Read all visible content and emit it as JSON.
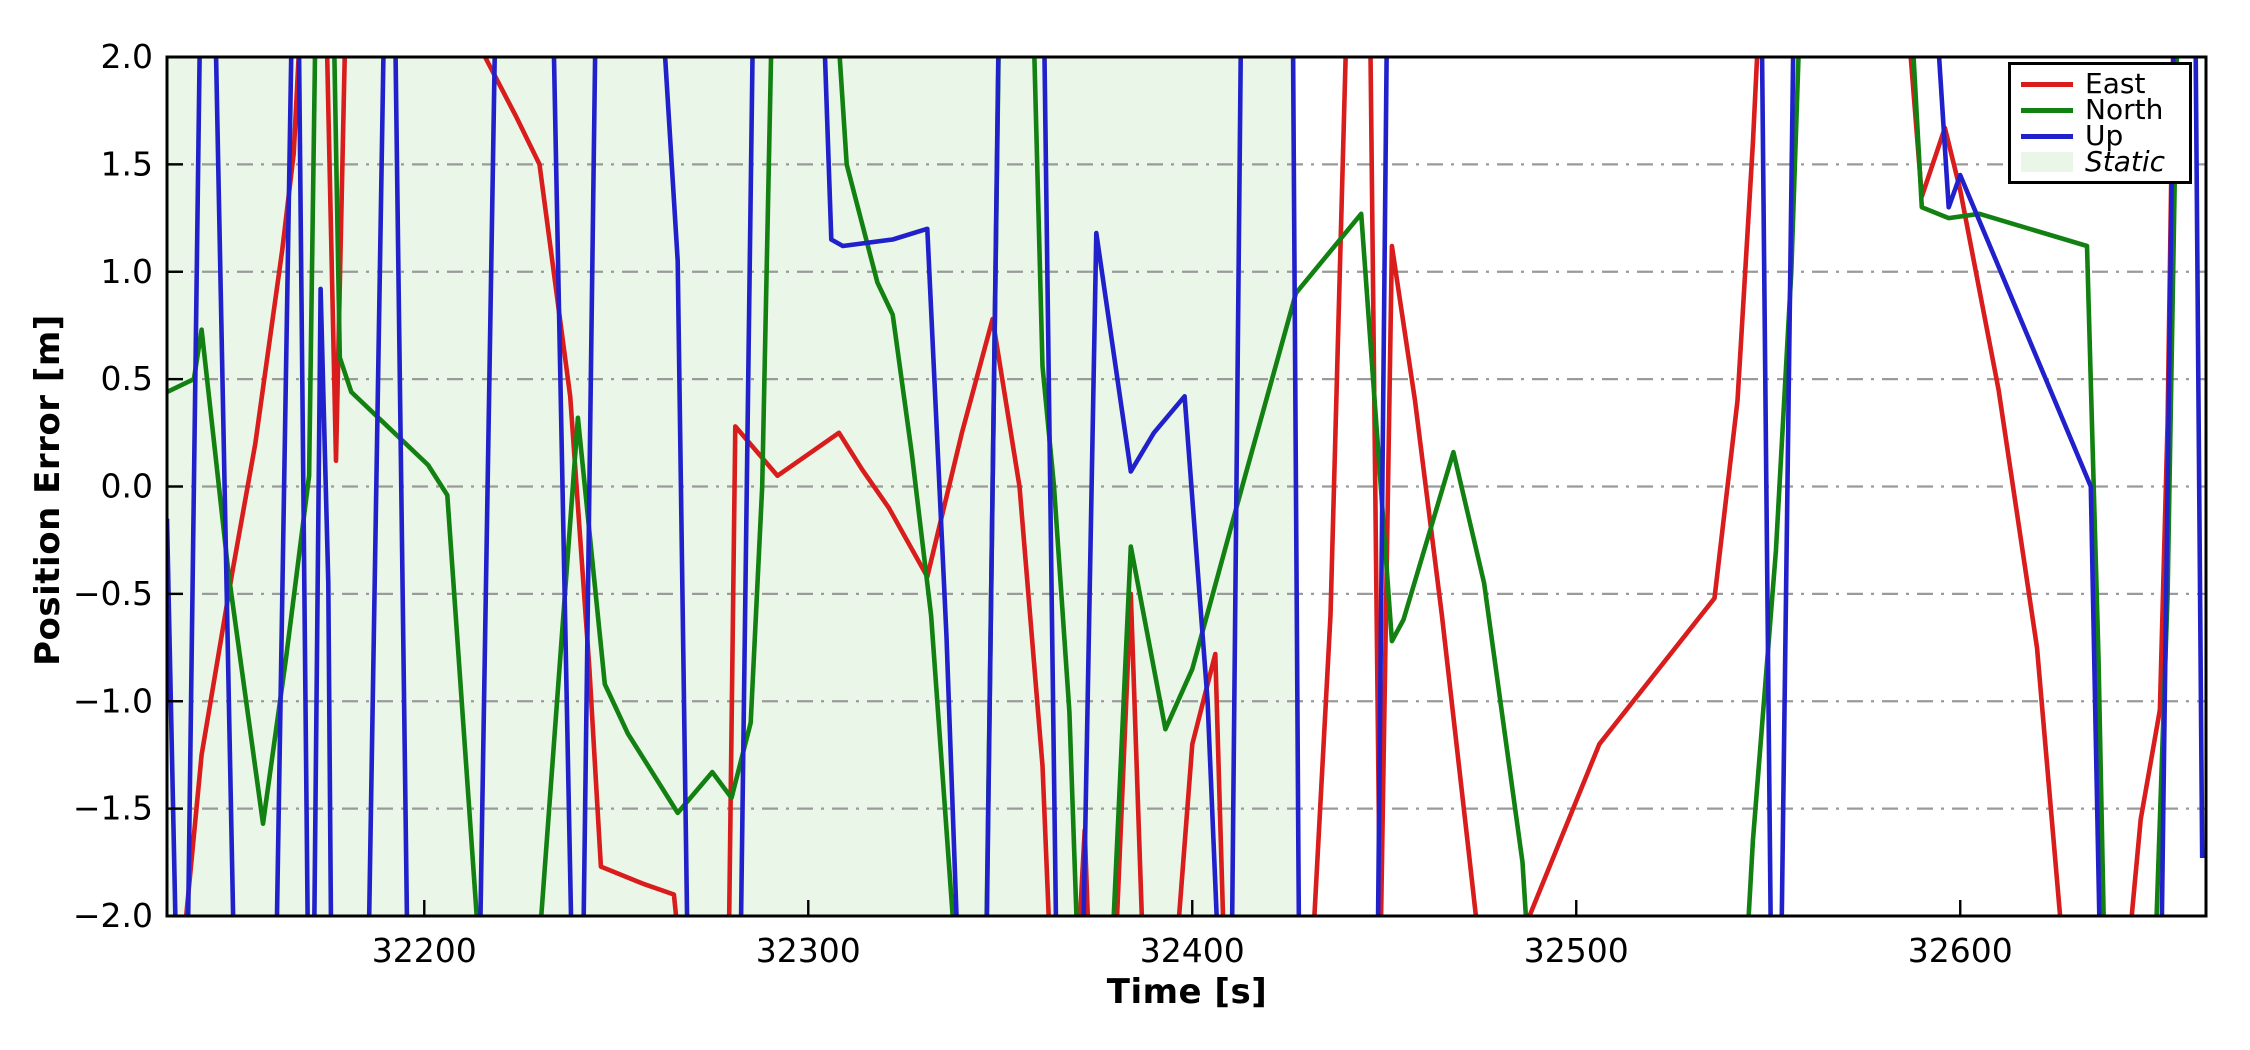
{
  "chart_data": {
    "type": "line",
    "title": "",
    "xlabel": "Time [s]",
    "ylabel": "Position Error [m]",
    "xlim": [
      32133,
      32664
    ],
    "ylim": [
      -2.0,
      2.0
    ],
    "grid": {
      "show": true,
      "style": "dashdot",
      "color": "#9a9a9a",
      "values": [
        1.5,
        1.0,
        0.5,
        0.0,
        -0.5,
        -1.0,
        -1.5
      ]
    },
    "xticks": [
      {
        "value": 32200,
        "label": "32200"
      },
      {
        "value": 32300,
        "label": "32300"
      },
      {
        "value": 32400,
        "label": "32400"
      },
      {
        "value": 32500,
        "label": "32500"
      },
      {
        "value": 32600,
        "label": "32600"
      }
    ],
    "yticks": [
      {
        "value": 2.0,
        "label": "2.0"
      },
      {
        "value": 1.5,
        "label": "1.5"
      },
      {
        "value": 1.0,
        "label": "1.0"
      },
      {
        "value": 0.5,
        "label": "0.5"
      },
      {
        "value": 0.0,
        "label": "0.0"
      },
      {
        "value": -0.5,
        "label": "−0.5"
      },
      {
        "value": -1.0,
        "label": "−1.0"
      },
      {
        "value": -1.5,
        "label": "−1.5"
      },
      {
        "value": -2.0,
        "label": "−2.0"
      }
    ],
    "static_region": {
      "label": "Static",
      "start": 32133,
      "end": 32427,
      "color": "#eaf7e8"
    },
    "legend": {
      "position": "top-right",
      "items": [
        {
          "label": "East",
          "color": "#d91c1c",
          "type": "line",
          "italic": false
        },
        {
          "label": "North",
          "color": "#128112",
          "type": "line",
          "italic": false
        },
        {
          "label": "Up",
          "color": "#2121cc",
          "type": "line",
          "italic": false
        },
        {
          "label": "Static",
          "color": "#eaf7e8",
          "type": "patch",
          "italic": true
        }
      ]
    },
    "series": [
      {
        "name": "East",
        "color": "#d91c1c",
        "points": [
          [
            32135,
            -2.8
          ],
          [
            32138,
            -2.0
          ],
          [
            32142,
            -1.25
          ],
          [
            32150,
            -0.4
          ],
          [
            32156,
            0.2
          ],
          [
            32163,
            1.1
          ],
          [
            32166,
            1.55
          ],
          [
            32169,
            2.6
          ],
          [
            32174,
            2.6
          ],
          [
            32177,
            0.12
          ],
          [
            32180,
            2.6
          ],
          [
            32206,
            2.6
          ],
          [
            32210,
            2.2
          ],
          [
            32224,
            1.72
          ],
          [
            32230,
            1.5
          ],
          [
            32238,
            0.42
          ],
          [
            32243,
            -0.85
          ],
          [
            32246,
            -1.77
          ],
          [
            32257,
            -1.85
          ],
          [
            32265,
            -1.9
          ],
          [
            32269,
            -2.6
          ],
          [
            32279,
            -2.6
          ],
          [
            32281,
            0.28
          ],
          [
            32292,
            0.05
          ],
          [
            32300,
            0.15
          ],
          [
            32308,
            0.25
          ],
          [
            32314,
            0.08
          ],
          [
            32321,
            -0.1
          ],
          [
            32331,
            -0.42
          ],
          [
            32340,
            0.25
          ],
          [
            32348,
            0.78
          ],
          [
            32355,
            0.0
          ],
          [
            32361,
            -1.3
          ],
          [
            32364,
            -2.6
          ],
          [
            32369,
            -2.6
          ],
          [
            32372,
            -1.6
          ],
          [
            32374,
            -2.6
          ],
          [
            32379,
            -2.6
          ],
          [
            32384,
            -0.5
          ],
          [
            32388,
            -2.6
          ],
          [
            32394,
            -2.6
          ],
          [
            32400,
            -1.2
          ],
          [
            32406,
            -0.78
          ],
          [
            32409,
            -2.6
          ],
          [
            32430,
            -2.6
          ],
          [
            32436,
            -0.6
          ],
          [
            32441,
            2.7
          ],
          [
            32446,
            2.7
          ],
          [
            32449,
            -2.2
          ],
          [
            32452,
            1.12
          ],
          [
            32458,
            0.4
          ],
          [
            32465,
            -0.6
          ],
          [
            32472,
            -1.7
          ],
          [
            32477,
            -2.5
          ],
          [
            32481,
            -2.3
          ],
          [
            32506,
            -1.2
          ],
          [
            32536,
            -0.52
          ],
          [
            32542,
            0.4
          ],
          [
            32546,
            1.6
          ],
          [
            32549,
            2.7
          ],
          [
            32584,
            2.7
          ],
          [
            32590,
            1.35
          ],
          [
            32596,
            1.67
          ],
          [
            32600,
            1.38
          ],
          [
            32610,
            0.45
          ],
          [
            32620,
            -0.75
          ],
          [
            32626,
            -2.0
          ],
          [
            32628,
            -2.7
          ],
          [
            32641,
            -2.7
          ],
          [
            32647,
            -1.55
          ],
          [
            32652,
            -1.04
          ],
          [
            32654,
            0.3
          ],
          [
            32656,
            2.7
          ]
        ]
      },
      {
        "name": "North",
        "color": "#128112",
        "points": [
          [
            32133,
            0.44
          ],
          [
            32140,
            0.5
          ],
          [
            32142,
            0.73
          ],
          [
            32149,
            -0.4
          ],
          [
            32158,
            -1.57
          ],
          [
            32164,
            -0.8
          ],
          [
            32170,
            0.05
          ],
          [
            32172,
            2.6
          ],
          [
            32176,
            2.6
          ],
          [
            32178,
            0.6
          ],
          [
            32181,
            0.44
          ],
          [
            32201,
            0.1
          ],
          [
            32206,
            -0.04
          ],
          [
            32216,
            -2.6
          ],
          [
            32228,
            -2.6
          ],
          [
            32240,
            0.32
          ],
          [
            32247,
            -0.92
          ],
          [
            32253,
            -1.15
          ],
          [
            32266,
            -1.52
          ],
          [
            32275,
            -1.33
          ],
          [
            32280,
            -1.45
          ],
          [
            32285,
            -1.1
          ],
          [
            32288,
            0.0
          ],
          [
            32291,
            2.6
          ],
          [
            32306,
            2.6
          ],
          [
            32310,
            1.5
          ],
          [
            32318,
            0.95
          ],
          [
            32322,
            0.8
          ],
          [
            32327,
            0.15
          ],
          [
            32332,
            -0.6
          ],
          [
            32340,
            -2.6
          ],
          [
            32346,
            -2.6
          ],
          [
            32350,
            2.6
          ],
          [
            32358,
            2.6
          ],
          [
            32361,
            0.56
          ],
          [
            32364,
            0.0
          ],
          [
            32368,
            -1.05
          ],
          [
            32371,
            -2.6
          ],
          [
            32378,
            -2.6
          ],
          [
            32384,
            -0.28
          ],
          [
            32393,
            -1.13
          ],
          [
            32400,
            -0.85
          ],
          [
            32413,
            0.0
          ],
          [
            32427,
            0.9
          ],
          [
            32444,
            1.27
          ],
          [
            32452,
            -0.72
          ],
          [
            32455,
            -0.62
          ],
          [
            32468,
            0.16
          ],
          [
            32476,
            -0.45
          ],
          [
            32486,
            -1.75
          ],
          [
            32489,
            -2.6
          ],
          [
            32543,
            -2.6
          ],
          [
            32546,
            -1.65
          ],
          [
            32552,
            -0.3
          ],
          [
            32556,
            1.0
          ],
          [
            32559,
            2.6
          ],
          [
            32586,
            2.6
          ],
          [
            32590,
            1.3
          ],
          [
            32597,
            1.25
          ],
          [
            32605,
            1.27
          ],
          [
            32633,
            1.12
          ],
          [
            32636,
            -0.8
          ],
          [
            32638,
            -2.6
          ],
          [
            32650,
            -2.6
          ],
          [
            32654,
            -0.5
          ],
          [
            32657,
            2.6
          ]
        ]
      },
      {
        "name": "Up",
        "color": "#2121cc",
        "points": [
          [
            32133,
            -0.15
          ],
          [
            32136,
            -2.7
          ],
          [
            32138,
            -2.7
          ],
          [
            32142,
            2.7
          ],
          [
            32145,
            2.7
          ],
          [
            32151,
            -2.7
          ],
          [
            32161,
            -2.7
          ],
          [
            32166,
            2.7
          ],
          [
            32167,
            2.7
          ],
          [
            32170,
            -2.7
          ],
          [
            32171,
            -2.7
          ],
          [
            32173,
            0.92
          ],
          [
            32175,
            -0.45
          ],
          [
            32176,
            -2.7
          ],
          [
            32185,
            -2.7
          ],
          [
            32190,
            2.7
          ],
          [
            32192,
            2.7
          ],
          [
            32196,
            -2.7
          ],
          [
            32214,
            -2.7
          ],
          [
            32219,
            2.7
          ],
          [
            32233,
            2.7
          ],
          [
            32239,
            -2.7
          ],
          [
            32241,
            -2.7
          ],
          [
            32245,
            2.7
          ],
          [
            32261,
            2.5
          ],
          [
            32266,
            1.05
          ],
          [
            32269,
            -2.7
          ],
          [
            32282,
            -2.7
          ],
          [
            32286,
            2.7
          ],
          [
            32303,
            2.7
          ],
          [
            32306,
            1.15
          ],
          [
            32309,
            1.12
          ],
          [
            32322,
            1.15
          ],
          [
            32331,
            1.2
          ],
          [
            32336,
            -0.7
          ],
          [
            32340,
            -2.7
          ],
          [
            32346,
            -2.7
          ],
          [
            32350,
            2.7
          ],
          [
            32361,
            2.7
          ],
          [
            32365,
            -2.7
          ],
          [
            32371,
            -2.7
          ],
          [
            32375,
            1.18
          ],
          [
            32384,
            0.07
          ],
          [
            32390,
            0.25
          ],
          [
            32398,
            0.42
          ],
          [
            32404,
            -1.0
          ],
          [
            32408,
            -2.7
          ],
          [
            32410,
            -2.7
          ],
          [
            32413,
            2.7
          ],
          [
            32426,
            2.7
          ],
          [
            32428,
            -2.7
          ],
          [
            32448,
            -2.7
          ],
          [
            32451,
            2.7
          ],
          [
            32548,
            2.7
          ],
          [
            32551,
            -2.7
          ],
          [
            32553,
            -2.7
          ],
          [
            32557,
            2.7
          ],
          [
            32592,
            2.7
          ],
          [
            32597,
            1.3
          ],
          [
            32600,
            1.45
          ],
          [
            32634,
            0.0
          ],
          [
            32637,
            -2.7
          ],
          [
            32652,
            -2.7
          ],
          [
            32656,
            2.7
          ],
          [
            32661,
            2.7
          ],
          [
            32663,
            -1.73
          ]
        ]
      }
    ]
  }
}
